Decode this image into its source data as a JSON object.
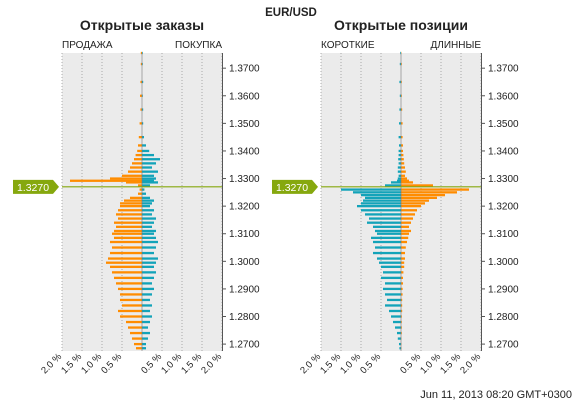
{
  "symbol": "EUR/USD",
  "timestamp": "Jun 11, 2013 08:20 GMT+0300",
  "current_price_label": "1.3270",
  "colors": {
    "left": "#ff8c00",
    "right": "#13a3b9",
    "price": "#86a80e",
    "panel": "#ebebeb",
    "grid": "#999999"
  },
  "chart_data": [
    {
      "type": "bar",
      "orientation": "horizontal-butterfly",
      "title": "Открытые заказы",
      "left_label": "ПРОДАЖА",
      "right_label": "ПОКУПКА",
      "y_ticks": [
        "1.3700",
        "1.3600",
        "1.3500",
        "1.3400",
        "1.3300",
        "1.3200",
        "1.3100",
        "1.3000",
        "1.2900",
        "1.2800",
        "1.2700"
      ],
      "y_tick_values": [
        1.37,
        1.36,
        1.35,
        1.34,
        1.33,
        1.32,
        1.31,
        1.3,
        1.29,
        1.28,
        1.27
      ],
      "ylim": [
        1.2675,
        1.3755
      ],
      "x_ticks": [
        "2.0 %",
        "1.5 %",
        "1.0 %",
        "0.5 %",
        "0.5 %",
        "1.0 %",
        "1.5 %",
        "2.0 %"
      ],
      "xlim": [
        -2.0,
        2.0
      ],
      "current_price": 1.327,
      "series": [
        {
          "name": "ПРОДАЖА",
          "color": "#ff8c00",
          "points": [
            [
              1.3755,
              0.03
            ],
            [
              1.3715,
              0.03
            ],
            [
              1.365,
              0.04
            ],
            [
              1.36,
              0.05
            ],
            [
              1.355,
              0.04
            ],
            [
              1.35,
              0.06
            ],
            [
              1.345,
              0.08
            ],
            [
              1.342,
              0.1
            ],
            [
              1.34,
              0.12
            ],
            [
              1.3385,
              0.16
            ],
            [
              1.337,
              0.2
            ],
            [
              1.3355,
              0.25
            ],
            [
              1.334,
              0.3
            ],
            [
              1.3325,
              0.35
            ],
            [
              1.331,
              0.5
            ],
            [
              1.33,
              0.8
            ],
            [
              1.3292,
              1.8
            ],
            [
              1.3286,
              0.4
            ],
            [
              1.3275,
              0.1
            ],
            [
              1.326,
              0.06
            ],
            [
              1.3245,
              0.1
            ],
            [
              1.323,
              0.3
            ],
            [
              1.322,
              0.45
            ],
            [
              1.321,
              0.55
            ],
            [
              1.32,
              0.55
            ],
            [
              1.3185,
              0.6
            ],
            [
              1.317,
              0.65
            ],
            [
              1.3155,
              0.6
            ],
            [
              1.314,
              0.7
            ],
            [
              1.3125,
              0.65
            ],
            [
              1.311,
              0.7
            ],
            [
              1.31,
              0.75
            ],
            [
              1.3085,
              0.7
            ],
            [
              1.307,
              0.8
            ],
            [
              1.305,
              0.75
            ],
            [
              1.303,
              0.8
            ],
            [
              1.301,
              0.85
            ],
            [
              1.2995,
              0.9
            ],
            [
              1.298,
              0.8
            ],
            [
              1.296,
              0.75
            ],
            [
              1.294,
              0.7
            ],
            [
              1.292,
              0.65
            ],
            [
              1.29,
              0.6
            ],
            [
              1.288,
              0.55
            ],
            [
              1.286,
              0.55
            ],
            [
              1.284,
              0.5
            ],
            [
              1.282,
              0.6
            ],
            [
              1.28,
              0.55
            ],
            [
              1.278,
              0.4
            ],
            [
              1.276,
              0.35
            ],
            [
              1.274,
              0.3
            ],
            [
              1.272,
              0.25
            ],
            [
              1.27,
              0.2
            ],
            [
              1.2685,
              0.15
            ]
          ]
        },
        {
          "name": "ПОКУПКА",
          "color": "#13a3b9",
          "points": [
            [
              1.3755,
              0.02
            ],
            [
              1.3715,
              0.02
            ],
            [
              1.365,
              0.03
            ],
            [
              1.36,
              0.02
            ],
            [
              1.355,
              0.03
            ],
            [
              1.35,
              0.03
            ],
            [
              1.345,
              0.05
            ],
            [
              1.342,
              0.1
            ],
            [
              1.34,
              0.18
            ],
            [
              1.3385,
              0.3
            ],
            [
              1.337,
              0.45
            ],
            [
              1.3355,
              0.35
            ],
            [
              1.334,
              0.25
            ],
            [
              1.3325,
              0.4
            ],
            [
              1.331,
              0.3
            ],
            [
              1.33,
              0.35
            ],
            [
              1.3292,
              0.3
            ],
            [
              1.3286,
              0.4
            ],
            [
              1.3275,
              0.2
            ],
            [
              1.326,
              0.06
            ],
            [
              1.3245,
              0.1
            ],
            [
              1.323,
              0.2
            ],
            [
              1.322,
              0.3
            ],
            [
              1.321,
              0.25
            ],
            [
              1.32,
              0.2
            ],
            [
              1.3185,
              0.3
            ],
            [
              1.317,
              0.25
            ],
            [
              1.3155,
              0.35
            ],
            [
              1.314,
              0.3
            ],
            [
              1.3125,
              0.25
            ],
            [
              1.311,
              0.35
            ],
            [
              1.31,
              0.3
            ],
            [
              1.3085,
              0.35
            ],
            [
              1.307,
              0.4
            ],
            [
              1.305,
              0.35
            ],
            [
              1.303,
              0.3
            ],
            [
              1.301,
              0.4
            ],
            [
              1.2995,
              0.35
            ],
            [
              1.298,
              0.3
            ],
            [
              1.296,
              0.35
            ],
            [
              1.294,
              0.3
            ],
            [
              1.292,
              0.25
            ],
            [
              1.29,
              0.3
            ],
            [
              1.288,
              0.25
            ],
            [
              1.286,
              0.2
            ],
            [
              1.284,
              0.25
            ],
            [
              1.282,
              0.2
            ],
            [
              1.28,
              0.25
            ],
            [
              1.278,
              0.2
            ],
            [
              1.276,
              0.15
            ],
            [
              1.274,
              0.2
            ],
            [
              1.272,
              0.15
            ],
            [
              1.27,
              0.1
            ],
            [
              1.2685,
              0.1
            ]
          ]
        }
      ]
    },
    {
      "type": "bar",
      "orientation": "horizontal-butterfly",
      "title": "Открытые позиции",
      "left_label": "КОРОТКИЕ",
      "right_label": "ДЛИННЫЕ",
      "y_ticks": [
        "1.3700",
        "1.3600",
        "1.3500",
        "1.3400",
        "1.3300",
        "1.3200",
        "1.3100",
        "1.3000",
        "1.2900",
        "1.2800",
        "1.2700"
      ],
      "y_tick_values": [
        1.37,
        1.36,
        1.35,
        1.34,
        1.33,
        1.32,
        1.31,
        1.3,
        1.29,
        1.28,
        1.27
      ],
      "ylim": [
        1.2675,
        1.3755
      ],
      "x_ticks": [
        "2.0 %",
        "1.5 %",
        "1.0 %",
        "0.5 %",
        "0.5 %",
        "1.0 %",
        "1.5 %",
        "2.0 %"
      ],
      "xlim": [
        -2.0,
        2.0
      ],
      "current_price": 1.327,
      "series": [
        {
          "name": "КОРОТКИЕ",
          "color": "#13a3b9",
          "points": [
            [
              1.3755,
              0.02
            ],
            [
              1.3715,
              0.03
            ],
            [
              1.365,
              0.04
            ],
            [
              1.36,
              0.03
            ],
            [
              1.355,
              0.04
            ],
            [
              1.35,
              0.05
            ],
            [
              1.345,
              0.06
            ],
            [
              1.342,
              0.05
            ],
            [
              1.34,
              0.06
            ],
            [
              1.3385,
              0.06
            ],
            [
              1.337,
              0.07
            ],
            [
              1.3355,
              0.06
            ],
            [
              1.334,
              0.08
            ],
            [
              1.3325,
              0.08
            ],
            [
              1.331,
              0.06
            ],
            [
              1.33,
              0.08
            ],
            [
              1.3292,
              0.1
            ],
            [
              1.3286,
              0.25
            ],
            [
              1.3275,
              0.4
            ],
            [
              1.326,
              1.5
            ],
            [
              1.325,
              1.2
            ],
            [
              1.324,
              1.0
            ],
            [
              1.323,
              0.9
            ],
            [
              1.322,
              0.95
            ],
            [
              1.321,
              1.0
            ],
            [
              1.32,
              1.1
            ],
            [
              1.3185,
              1.0
            ],
            [
              1.317,
              0.9
            ],
            [
              1.3155,
              0.8
            ],
            [
              1.314,
              0.85
            ],
            [
              1.3125,
              0.7
            ],
            [
              1.311,
              0.65
            ],
            [
              1.31,
              0.6
            ],
            [
              1.3085,
              0.75
            ],
            [
              1.307,
              0.7
            ],
            [
              1.305,
              0.65
            ],
            [
              1.303,
              0.7
            ],
            [
              1.301,
              0.6
            ],
            [
              1.2995,
              0.55
            ],
            [
              1.298,
              0.5
            ],
            [
              1.296,
              0.45
            ],
            [
              1.294,
              0.5
            ],
            [
              1.292,
              0.4
            ],
            [
              1.29,
              0.45
            ],
            [
              1.288,
              0.4
            ],
            [
              1.286,
              0.35
            ],
            [
              1.284,
              0.4
            ],
            [
              1.282,
              0.3
            ],
            [
              1.28,
              0.25
            ],
            [
              1.278,
              0.2
            ],
            [
              1.276,
              0.15
            ],
            [
              1.274,
              0.1
            ],
            [
              1.272,
              0.08
            ],
            [
              1.27,
              0.05
            ],
            [
              1.2685,
              0.04
            ]
          ]
        },
        {
          "name": "ДЛИННЫЕ",
          "color": "#ff8c00",
          "points": [
            [
              1.3755,
              0.01
            ],
            [
              1.3715,
              0.02
            ],
            [
              1.365,
              0.02
            ],
            [
              1.36,
              0.02
            ],
            [
              1.355,
              0.03
            ],
            [
              1.35,
              0.04
            ],
            [
              1.345,
              0.04
            ],
            [
              1.342,
              0.05
            ],
            [
              1.34,
              0.05
            ],
            [
              1.3385,
              0.06
            ],
            [
              1.337,
              0.07
            ],
            [
              1.3355,
              0.08
            ],
            [
              1.334,
              0.1
            ],
            [
              1.3325,
              0.12
            ],
            [
              1.331,
              0.1
            ],
            [
              1.33,
              0.15
            ],
            [
              1.3292,
              0.2
            ],
            [
              1.3286,
              0.3
            ],
            [
              1.3275,
              0.8
            ],
            [
              1.326,
              1.7
            ],
            [
              1.325,
              1.4
            ],
            [
              1.324,
              1.1
            ],
            [
              1.323,
              0.9
            ],
            [
              1.322,
              0.7
            ],
            [
              1.321,
              0.6
            ],
            [
              1.32,
              0.5
            ],
            [
              1.3185,
              0.4
            ],
            [
              1.317,
              0.35
            ],
            [
              1.3155,
              0.3
            ],
            [
              1.314,
              0.25
            ],
            [
              1.3125,
              0.2
            ],
            [
              1.311,
              0.25
            ],
            [
              1.31,
              0.2
            ],
            [
              1.3085,
              0.18
            ],
            [
              1.307,
              0.15
            ],
            [
              1.305,
              0.12
            ],
            [
              1.303,
              0.1
            ],
            [
              1.301,
              0.1
            ],
            [
              1.2995,
              0.08
            ],
            [
              1.298,
              0.08
            ],
            [
              1.296,
              0.06
            ],
            [
              1.294,
              0.05
            ],
            [
              1.292,
              0.05
            ],
            [
              1.29,
              0.04
            ],
            [
              1.288,
              0.04
            ],
            [
              1.286,
              0.03
            ],
            [
              1.284,
              0.03
            ],
            [
              1.282,
              0.03
            ],
            [
              1.28,
              0.02
            ],
            [
              1.278,
              0.02
            ],
            [
              1.276,
              0.02
            ],
            [
              1.274,
              0.02
            ],
            [
              1.272,
              0.01
            ],
            [
              1.27,
              0.01
            ],
            [
              1.2685,
              0.01
            ]
          ]
        }
      ]
    }
  ]
}
